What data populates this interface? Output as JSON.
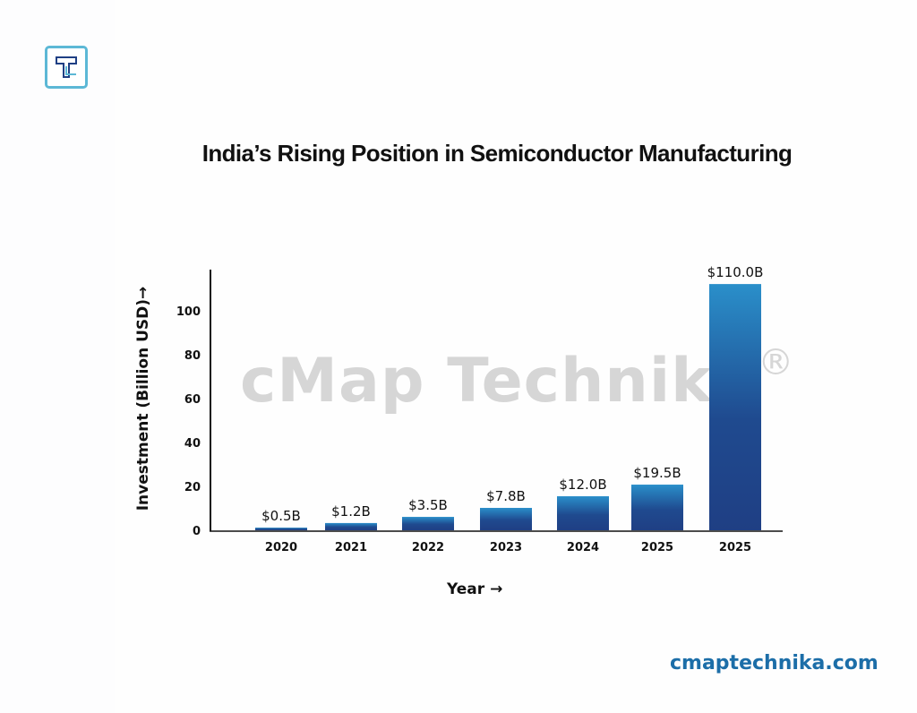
{
  "logo": {
    "icon": "t-logo-icon",
    "letter": "T"
  },
  "watermark": {
    "text": "cMap Technika",
    "mark": "®"
  },
  "footer": {
    "site": "cmaptechnika.com"
  },
  "colors": {
    "bar_top": "#2a8fca",
    "bar_bottom": "#1f3f84",
    "site_text": "#1c6ea8",
    "logo_border": "#5cb8d6"
  },
  "chart_data": {
    "type": "bar",
    "title": "India’s Rising Position in Semiconductor Manufacturing",
    "xlabel": "Year",
    "xlabel_arrow": "→",
    "ylabel": "Investment (Billion USD)",
    "ylabel_arrow": "→",
    "categories": [
      "2020",
      "2021",
      "2022",
      "2023",
      "2024",
      "2025",
      "2025"
    ],
    "values": [
      0.5,
      1.2,
      3.5,
      7.8,
      12.0,
      19.5,
      110.0
    ],
    "data_labels": [
      "$0.5B",
      "$1.2B",
      "$3.5B",
      "$7.8B",
      "$12.0B",
      "$19.5B",
      "$110.0B"
    ],
    "drawn_heights": [
      1.2,
      3.3,
      6.1,
      10.2,
      15.5,
      20.8,
      112.2
    ],
    "yticks": [
      0,
      20,
      40,
      60,
      80,
      100
    ],
    "ytick_labels": [
      "0",
      "20",
      "40",
      "60",
      "80",
      "100"
    ],
    "ylim": [
      0,
      118
    ],
    "grid": false,
    "legend": "none"
  }
}
